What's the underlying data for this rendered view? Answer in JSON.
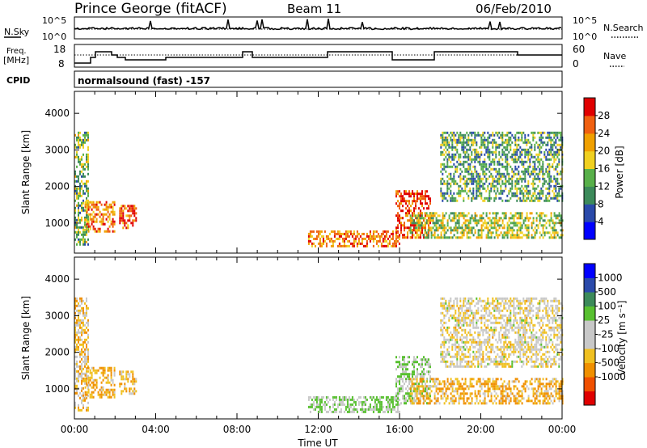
{
  "header": {
    "station": "Prince George (fitACF)",
    "beam": "Beam 11",
    "date": "06/Feb/2010"
  },
  "nsky_panel": {
    "label": "N.Sky",
    "right_label": "N.Search",
    "ytick_top": "10^5",
    "ytick_bottom": "10^0"
  },
  "freq_panel": {
    "label_line1": "Freq.",
    "label_line2": "[MHz]",
    "right_label": "Nave",
    "left_ticks": [
      "18",
      "8"
    ],
    "right_ticks": [
      "60",
      "0"
    ]
  },
  "cpid_panel": {
    "label": "CPID",
    "mode_text": "normalsound (fast) -157"
  },
  "colors": {
    "power": [
      "#0000ff",
      "#2a4aaa",
      "#3c8a5a",
      "#58b04a",
      "#f0d020",
      "#f0a000",
      "#f06010",
      "#e00000"
    ],
    "velocity": [
      "#e00000",
      "#f05000",
      "#f09000",
      "#f0c020",
      "#c8c8c8",
      "#c8c8c8",
      "#58c030",
      "#3c8a5a",
      "#2a4aaa",
      "#0000ff"
    ]
  },
  "chart_data": [
    {
      "type": "heatmap",
      "name": "power",
      "ylabel": "Slant Range [km]",
      "yticks": [
        "1000",
        "2000",
        "3000",
        "4000"
      ],
      "ylim": [
        180,
        4600
      ],
      "xlim_hours": [
        0,
        24
      ],
      "colorbar_label": "Power [dB]",
      "colorbar_ticks": [
        "4",
        "8",
        "12",
        "16",
        "20",
        "24",
        "28"
      ],
      "colorbar_range": [
        0,
        32
      ],
      "echo_regions": [
        {
          "start_hour": 0.0,
          "end_hour": 0.7,
          "low_km": 400,
          "high_km": 3500,
          "power_db": 14
        },
        {
          "start_hour": 0.5,
          "end_hour": 2.0,
          "low_km": 800,
          "high_km": 1600,
          "power_db": 24
        },
        {
          "start_hour": 2.2,
          "end_hour": 3.0,
          "low_km": 900,
          "high_km": 1500,
          "power_db": 26
        },
        {
          "start_hour": 11.5,
          "end_hour": 16.0,
          "low_km": 350,
          "high_km": 800,
          "power_db": 24
        },
        {
          "start_hour": 15.8,
          "end_hour": 17.5,
          "low_km": 600,
          "high_km": 1900,
          "power_db": 28
        },
        {
          "start_hour": 16.5,
          "end_hour": 24.0,
          "low_km": 600,
          "high_km": 1300,
          "power_db": 16
        },
        {
          "start_hour": 18.0,
          "end_hour": 24.0,
          "low_km": 1600,
          "high_km": 3500,
          "power_db": 12
        }
      ]
    },
    {
      "type": "heatmap",
      "name": "velocity",
      "ylabel": "Slant Range [km]",
      "yticks": [
        "1000",
        "2000",
        "3000",
        "4000"
      ],
      "ylim": [
        180,
        4600
      ],
      "xlabel": "Time UT",
      "xticks": [
        "00:00",
        "04:00",
        "08:00",
        "12:00",
        "16:00",
        "20:00",
        "00:00"
      ],
      "xlim_hours": [
        0,
        24
      ],
      "colorbar_label": "Velocity [m s⁻¹]",
      "colorbar_ticks": [
        "1000",
        "500",
        "100",
        "25",
        "-25",
        "-100",
        "-500",
        "-1000"
      ],
      "echo_regions": [
        {
          "start_hour": 0.0,
          "end_hour": 0.7,
          "low_km": 400,
          "high_km": 3500,
          "velocity_ms": -50
        },
        {
          "start_hour": 0.5,
          "end_hour": 2.0,
          "low_km": 800,
          "high_km": 1600,
          "velocity_ms": -100
        },
        {
          "start_hour": 2.2,
          "end_hour": 3.0,
          "low_km": 900,
          "high_km": 1500,
          "velocity_ms": -100
        },
        {
          "start_hour": 11.5,
          "end_hour": 16.0,
          "low_km": 350,
          "high_km": 800,
          "velocity_ms": 100
        },
        {
          "start_hour": 15.8,
          "end_hour": 17.5,
          "low_km": 600,
          "high_km": 1900,
          "velocity_ms": 100
        },
        {
          "start_hour": 16.5,
          "end_hour": 24.0,
          "low_km": 600,
          "high_km": 1300,
          "velocity_ms": -100
        },
        {
          "start_hour": 18.0,
          "end_hour": 24.0,
          "low_km": 1600,
          "high_km": 3500,
          "velocity_ms": 0
        }
      ]
    }
  ]
}
